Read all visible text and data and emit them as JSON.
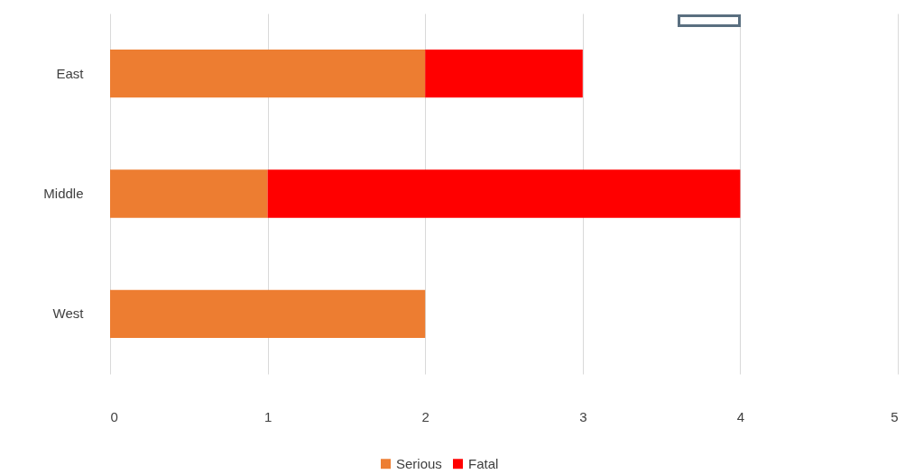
{
  "chart_data": {
    "type": "bar",
    "orientation": "horizontal",
    "stacked": true,
    "categories": [
      "East",
      "Middle",
      "West"
    ],
    "series": [
      {
        "name": "Serious",
        "color": "#ed7d31",
        "values": [
          2,
          1,
          2
        ]
      },
      {
        "name": "Fatal",
        "color": "#ff0000",
        "values": [
          1,
          3,
          0
        ]
      }
    ],
    "xlim": [
      0,
      5
    ],
    "xticks": [
      0,
      1,
      2,
      3,
      4,
      5
    ],
    "grid": "x",
    "legend": "bottom"
  }
}
